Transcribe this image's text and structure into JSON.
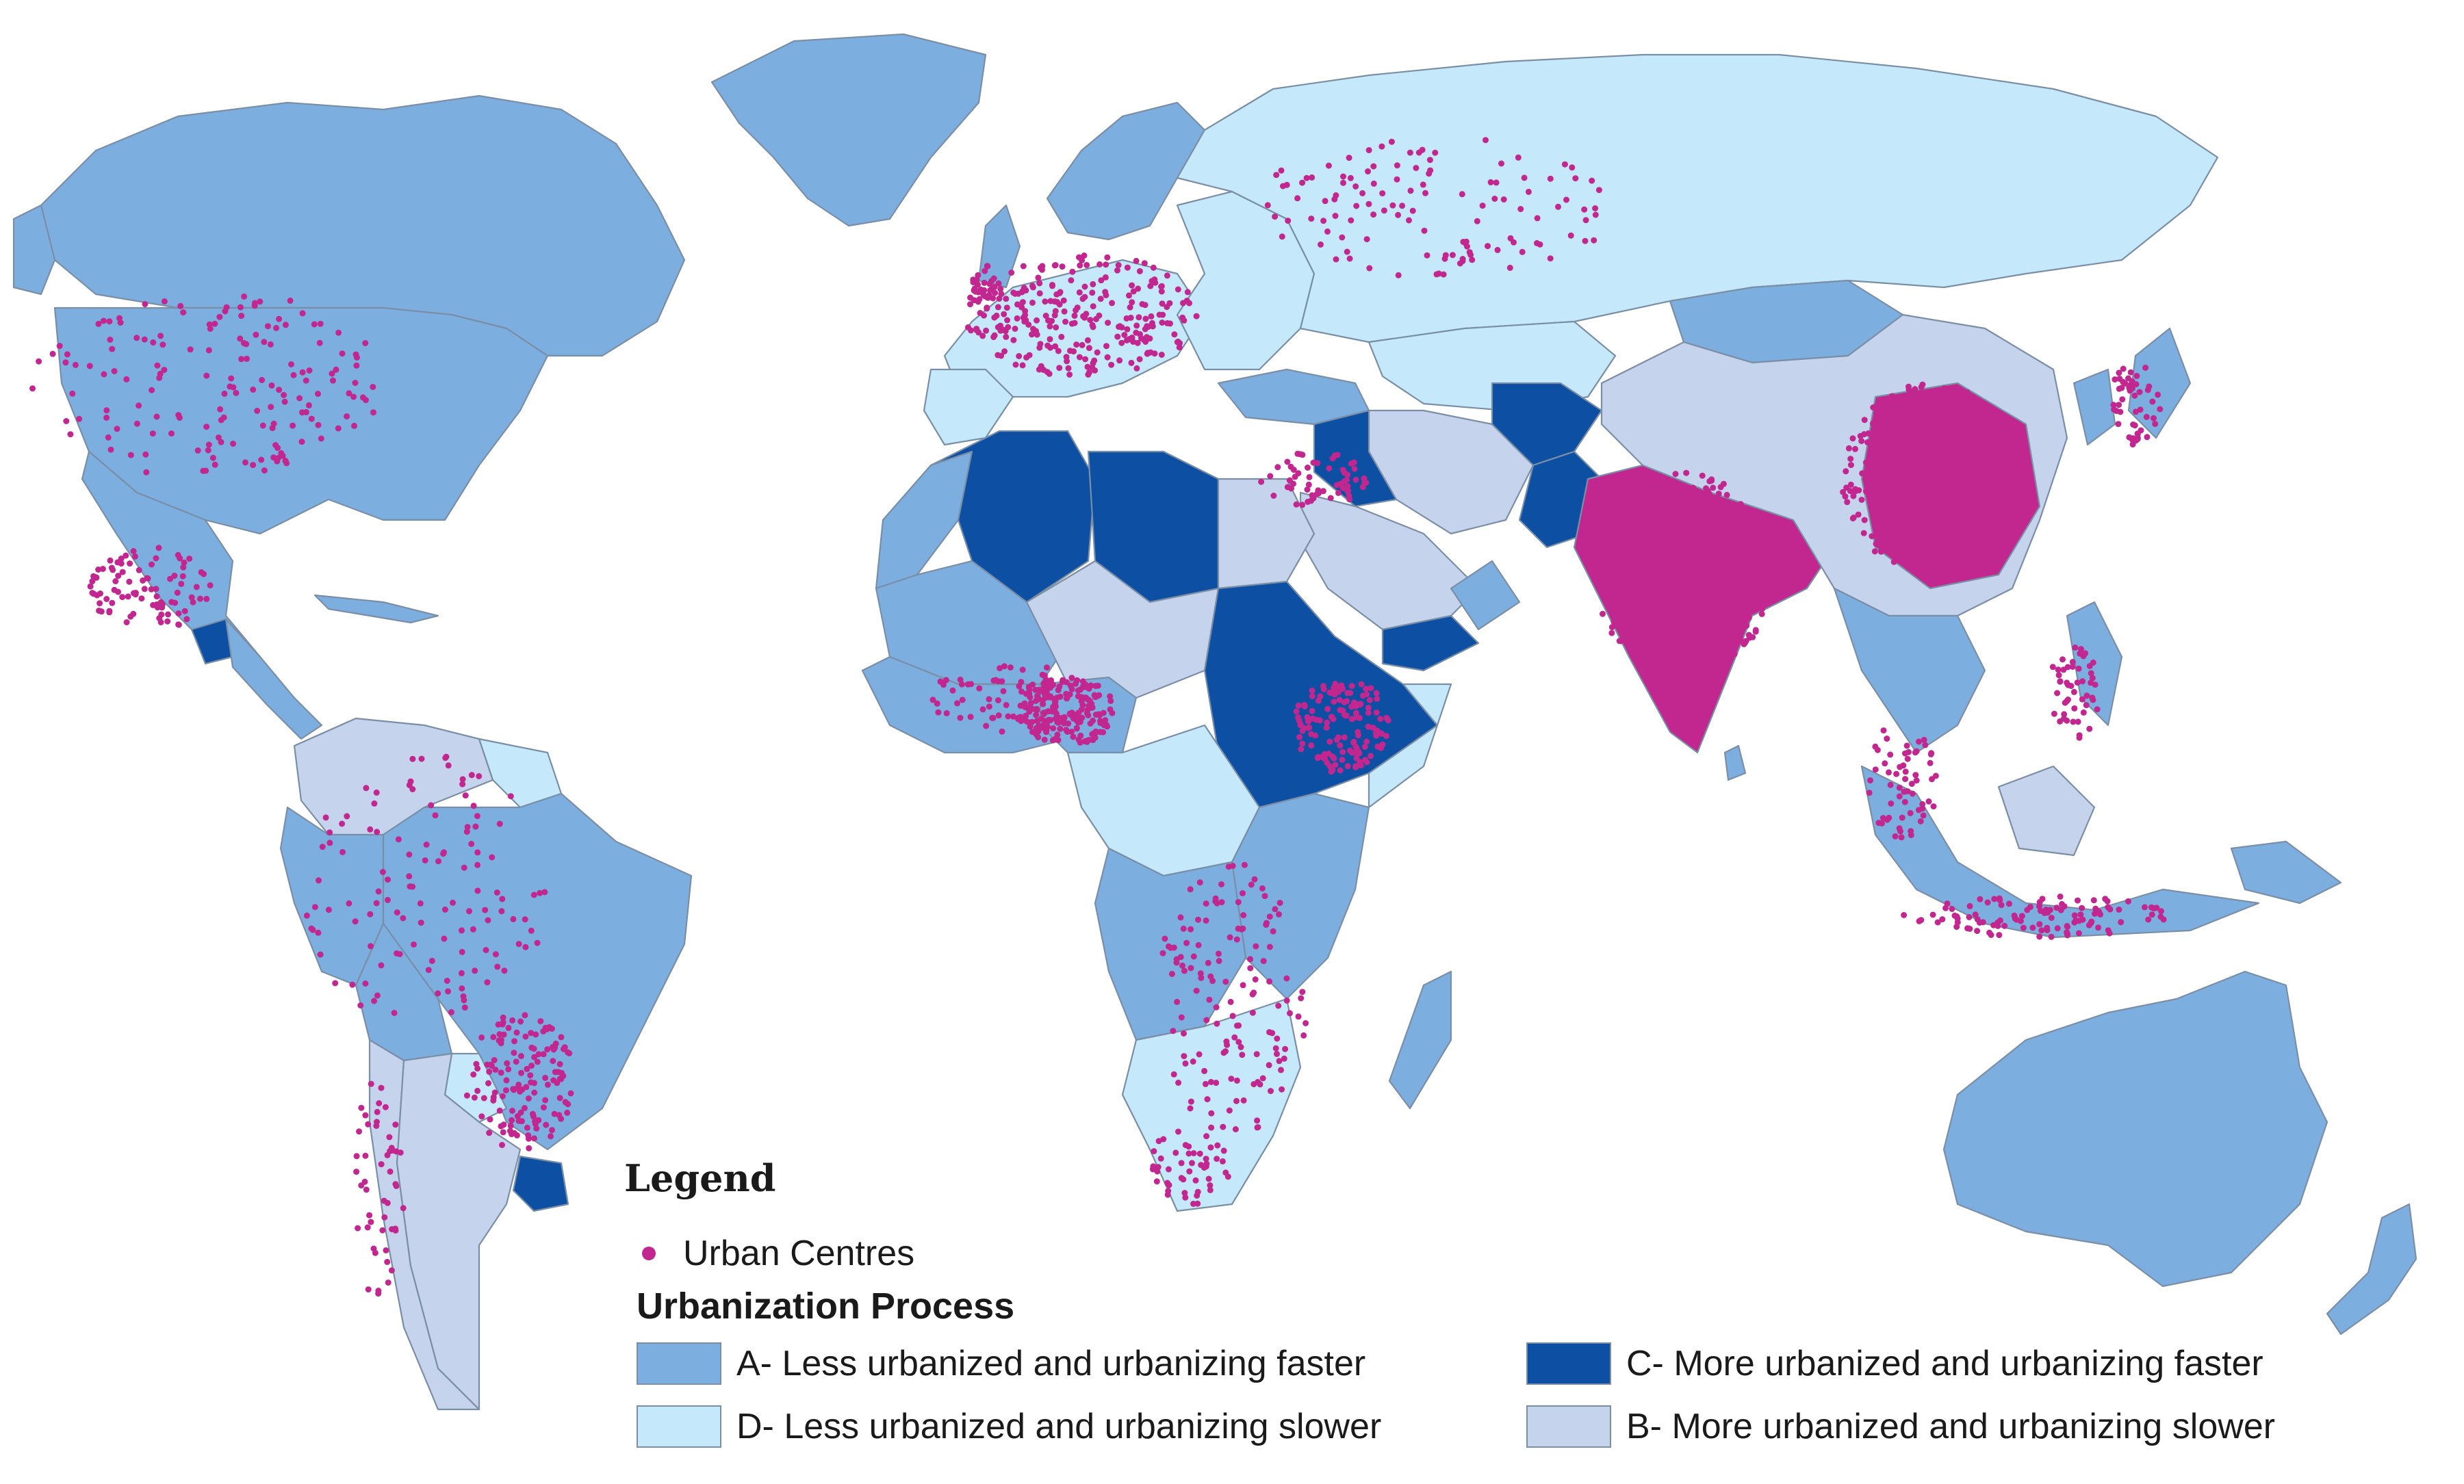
{
  "legend": {
    "title": "Legend",
    "urban_centres": "Urban Centres",
    "process_title": "Urbanization Process",
    "classes": [
      {
        "key": "A",
        "label": "A- Less urbanized and urbanizing faster",
        "color": "#7daee0"
      },
      {
        "key": "C",
        "label": "C- More urbanized and urbanizing faster",
        "color": "#0d4fa3"
      },
      {
        "key": "D",
        "label": "D- Less urbanized and urbanizing slower",
        "color": "#c5e9fa"
      },
      {
        "key": "B",
        "label": "B- More urbanized and urbanizing slower",
        "color": "#c6d3ec"
      }
    ]
  },
  "colors": {
    "urban_centre_dot": "#c2268f",
    "border": "#7a8ea6",
    "ocean": "#ffffff"
  }
}
